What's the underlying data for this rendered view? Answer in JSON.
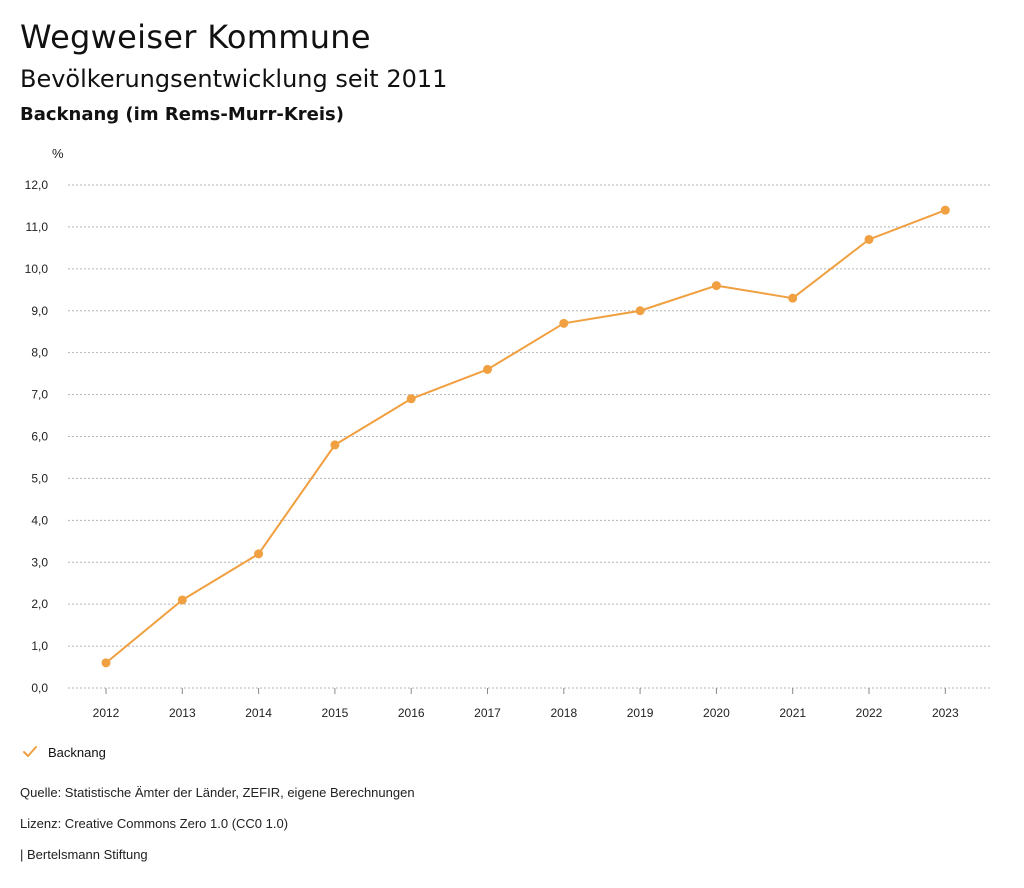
{
  "header": {
    "app_title": "Wegweiser Kommune",
    "chart_title": "Bevölkerungsentwicklung seit 2011",
    "chart_subtitle": "Backnang (im Rems-Murr-Kreis)"
  },
  "chart_data": {
    "type": "line",
    "title": "Bevölkerungsentwicklung seit 2011",
    "subtitle": "Backnang (im Rems-Murr-Kreis)",
    "xlabel": "",
    "ylabel": "%",
    "categories": [
      "2012",
      "2013",
      "2014",
      "2015",
      "2016",
      "2017",
      "2018",
      "2019",
      "2020",
      "2021",
      "2022",
      "2023"
    ],
    "series": [
      {
        "name": "Backnang",
        "color": "#f0a040",
        "values": [
          0.6,
          2.1,
          3.2,
          5.8,
          6.9,
          7.6,
          8.7,
          9.0,
          9.6,
          9.3,
          10.7,
          11.4
        ]
      }
    ],
    "ylim": [
      0,
      12
    ],
    "yticks": [
      "0,0",
      "1,0",
      "2,0",
      "3,0",
      "4,0",
      "5,0",
      "6,0",
      "7,0",
      "8,0",
      "9,0",
      "10,0",
      "11,0",
      "12,0"
    ],
    "grid": true,
    "grid_style": "dotted",
    "legend_position": "bottom-left"
  },
  "legend": {
    "label": "Backnang",
    "icon": "checkmark-icon",
    "color": "#f0a040"
  },
  "footer": {
    "source": "Quelle: Statistische Ämter der Länder, ZEFIR, eigene Berechnungen",
    "license": "Lizenz: Creative Commons Zero 1.0 (CC0 1.0)",
    "publisher": "| Bertelsmann Stiftung"
  }
}
